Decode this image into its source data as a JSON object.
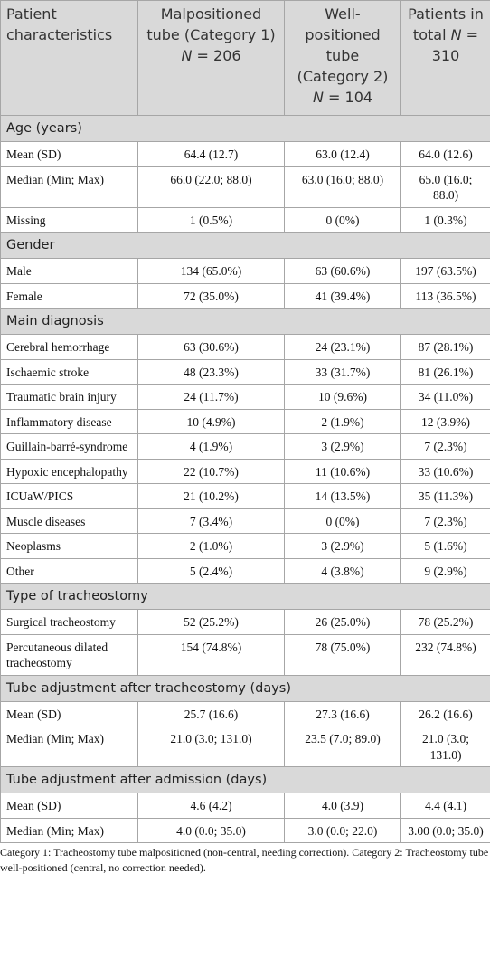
{
  "table": {
    "header": [
      {
        "label": "Patient characteristics"
      },
      {
        "label": "Malpositioned tube (Category 1)",
        "n_symbol": "N",
        "n": "= 206"
      },
      {
        "label": "Well-positioned tube (Category 2)",
        "n_symbol": "N",
        "n": "= 104"
      },
      {
        "label": "Patients in total",
        "n_symbol": "N",
        "n": "= 310"
      }
    ],
    "sections": [
      {
        "title": "Age (years)",
        "rows": [
          [
            "Mean (SD)",
            "64.4 (12.7)",
            "63.0 (12.4)",
            "64.0 (12.6)"
          ],
          [
            "Median (Min; Max)",
            "66.0 (22.0; 88.0)",
            "63.0 (16.0; 88.0)",
            "65.0 (16.0; 88.0)"
          ],
          [
            "Missing",
            "1 (0.5%)",
            "0 (0%)",
            "1 (0.3%)"
          ]
        ]
      },
      {
        "title": "Gender",
        "rows": [
          [
            "Male",
            "134 (65.0%)",
            "63 (60.6%)",
            "197 (63.5%)"
          ],
          [
            "Female",
            "72 (35.0%)",
            "41 (39.4%)",
            "113 (36.5%)"
          ]
        ]
      },
      {
        "title": "Main diagnosis",
        "rows": [
          [
            "Cerebral hemorrhage",
            "63 (30.6%)",
            "24 (23.1%)",
            "87 (28.1%)"
          ],
          [
            "Ischaemic stroke",
            "48 (23.3%)",
            "33 (31.7%)",
            "81 (26.1%)"
          ],
          [
            "Traumatic brain injury",
            "24 (11.7%)",
            "10 (9.6%)",
            "34 (11.0%)"
          ],
          [
            "Inflammatory disease",
            "10 (4.9%)",
            "2 (1.9%)",
            "12 (3.9%)"
          ],
          [
            "Guillain-barré-syndrome",
            "4 (1.9%)",
            "3 (2.9%)",
            "7 (2.3%)"
          ],
          [
            "Hypoxic encephalopathy",
            "22 (10.7%)",
            "11 (10.6%)",
            "33 (10.6%)"
          ],
          [
            "ICUaW/PICS",
            "21 (10.2%)",
            "14 (13.5%)",
            "35 (11.3%)"
          ],
          [
            "Muscle diseases",
            "7 (3.4%)",
            "0 (0%)",
            "7 (2.3%)"
          ],
          [
            "Neoplasms",
            "2 (1.0%)",
            "3 (2.9%)",
            "5 (1.6%)"
          ],
          [
            "Other",
            "5 (2.4%)",
            "4 (3.8%)",
            "9 (2.9%)"
          ]
        ]
      },
      {
        "title": "Type of tracheostomy",
        "rows": [
          [
            "Surgical tracheostomy",
            "52 (25.2%)",
            "26 (25.0%)",
            "78 (25.2%)"
          ],
          [
            "Percutaneous dilated tracheostomy",
            "154 (74.8%)",
            "78 (75.0%)",
            "232 (74.8%)"
          ]
        ]
      },
      {
        "title": "Tube adjustment after tracheostomy (days)",
        "rows": [
          [
            "Mean (SD)",
            "25.7 (16.6)",
            "27.3 (16.6)",
            "26.2 (16.6)"
          ],
          [
            "Median (Min; Max)",
            "21.0 (3.0; 131.0)",
            "23.5 (7.0; 89.0)",
            "21.0 (3.0; 131.0)"
          ]
        ]
      },
      {
        "title": "Tube adjustment after admission (days)",
        "rows": [
          [
            "Mean (SD)",
            "4.6 (4.2)",
            "4.0 (3.9)",
            "4.4 (4.1)"
          ],
          [
            "Median (Min; Max)",
            "4.0 (0.0; 35.0)",
            "3.0 (0.0; 22.0)",
            "3.00 (0.0; 35.0)"
          ]
        ]
      }
    ]
  },
  "footnote": "Category 1: Tracheostomy tube malpositioned (non-central, needing correction). Category 2: Tracheostomy tube well-positioned (central, no correction needed)."
}
